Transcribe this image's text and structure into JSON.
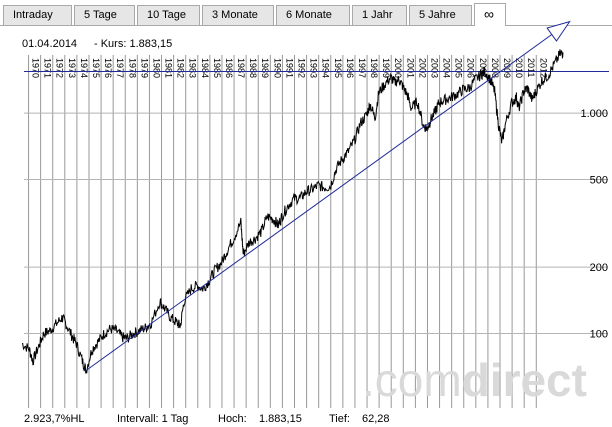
{
  "tabs": [
    {
      "label": "Intraday"
    },
    {
      "label": "5 Tage"
    },
    {
      "label": "10 Tage"
    },
    {
      "label": "3 Monate"
    },
    {
      "label": "6 Monate"
    },
    {
      "label": "1 Jahr"
    },
    {
      "label": "5 Jahre"
    },
    {
      "label": "∞",
      "active": true
    }
  ],
  "header": {
    "date": "01.04.2014",
    "kurs_label": "- Kurs: 1.883,15"
  },
  "footer": {
    "percent": "2.923,7%HL",
    "interval": "Intervall: 1 Tag",
    "high_label": "Hoch:",
    "high_value": "1.883,15",
    "low_label": "Tief:",
    "low_value": "62,28"
  },
  "watermark": {
    "part1": ".com",
    "part2": "direct"
  },
  "colors": {
    "price_line": "#000000",
    "trend_line": "#1f2a9b",
    "grid": "#999999",
    "watermark": "#d9d9d9"
  },
  "chart_data": {
    "type": "line",
    "y_scale": "log",
    "ylim": [
      45,
      2700
    ],
    "xlim": [
      1969.5,
      2014.5
    ],
    "y_ticks": [
      "100",
      "200",
      "500",
      "1.000"
    ],
    "y_tick_values": [
      100,
      200,
      500,
      1000
    ],
    "x_tick_labels": [
      "1970",
      "1971",
      "1972",
      "1973",
      "1974",
      "1975",
      "1976",
      "1977",
      "1978",
      "1979",
      "1980",
      "1981",
      "1982",
      "1983",
      "1984",
      "1985",
      "1986",
      "1987",
      "1988",
      "1989",
      "1990",
      "1991",
      "1992",
      "1993",
      "1994",
      "1995",
      "1996",
      "1997",
      "1998",
      "1999",
      "2000",
      "2001",
      "2002",
      "2003",
      "2004",
      "2005",
      "2006",
      "2007",
      "2008",
      "2009",
      "2010",
      "2011",
      "2012"
    ],
    "grid": true,
    "series": [
      {
        "x": [
          1969.5,
          1970.1,
          1970.4,
          1970.9,
          1971.3,
          1971.8,
          1972.3,
          1972.8,
          1973.1,
          1973.6,
          1974.0,
          1974.5,
          1974.8,
          1975.3,
          1975.8,
          1976.3,
          1976.8,
          1977.3,
          1977.8,
          1978.2,
          1978.7,
          1979.2,
          1979.7,
          1980.2,
          1980.9,
          1981.3,
          1981.8,
          1982.3,
          1982.6,
          1982.9,
          1983.5,
          1984.0,
          1984.5,
          1985.0,
          1985.5,
          1986.0,
          1986.5,
          1987.0,
          1987.6,
          1987.8,
          1988.3,
          1988.8,
          1989.3,
          1989.8,
          1990.3,
          1990.7,
          1991.0,
          1991.5,
          1992.0,
          1992.5,
          1993.0,
          1993.5,
          1994.0,
          1994.5,
          1995.0,
          1995.5,
          1996.0,
          1996.5,
          1997.0,
          1997.5,
          1998.0,
          1998.3,
          1998.7,
          1999.0,
          1999.5,
          2000.0,
          2000.3,
          2000.7,
          2001.0,
          2001.4,
          2001.7,
          2002.2,
          2002.7,
          2003.0,
          2003.3,
          2003.7,
          2004.0,
          2004.5,
          2005.0,
          2005.5,
          2006.0,
          2006.5,
          2007.0,
          2007.5,
          2007.8,
          2008.3,
          2008.6,
          2008.9,
          2009.2,
          2009.5,
          2010.0,
          2010.4,
          2010.6,
          2011.0,
          2011.3,
          2011.7,
          2012.0,
          2012.5,
          2013.0,
          2013.5,
          2014.0,
          2014.25
        ],
        "y": [
          90,
          85,
          75,
          88,
          100,
          103,
          110,
          118,
          112,
          98,
          90,
          75,
          68,
          85,
          92,
          100,
          105,
          103,
          96,
          95,
          100,
          103,
          106,
          112,
          140,
          130,
          118,
          112,
          108,
          140,
          160,
          165,
          160,
          175,
          195,
          210,
          240,
          270,
          320,
          230,
          260,
          270,
          290,
          340,
          330,
          310,
          340,
          380,
          410,
          410,
          440,
          450,
          470,
          460,
          465,
          560,
          620,
          670,
          750,
          900,
          980,
          1100,
          950,
          1230,
          1350,
          1450,
          1380,
          1420,
          1320,
          1200,
          1050,
          1130,
          880,
          850,
          930,
          1020,
          1120,
          1150,
          1180,
          1220,
          1280,
          1300,
          1420,
          1500,
          1550,
          1400,
          1250,
          900,
          735,
          900,
          1110,
          1180,
          1050,
          1250,
          1300,
          1150,
          1250,
          1400,
          1480,
          1650,
          1850,
          1883
        ]
      }
    ],
    "trend_line": {
      "x": [
        1974.8,
        2014.8
      ],
      "y": [
        68,
        2600
      ]
    },
    "horizontal_line": {
      "y": 1545
    }
  }
}
